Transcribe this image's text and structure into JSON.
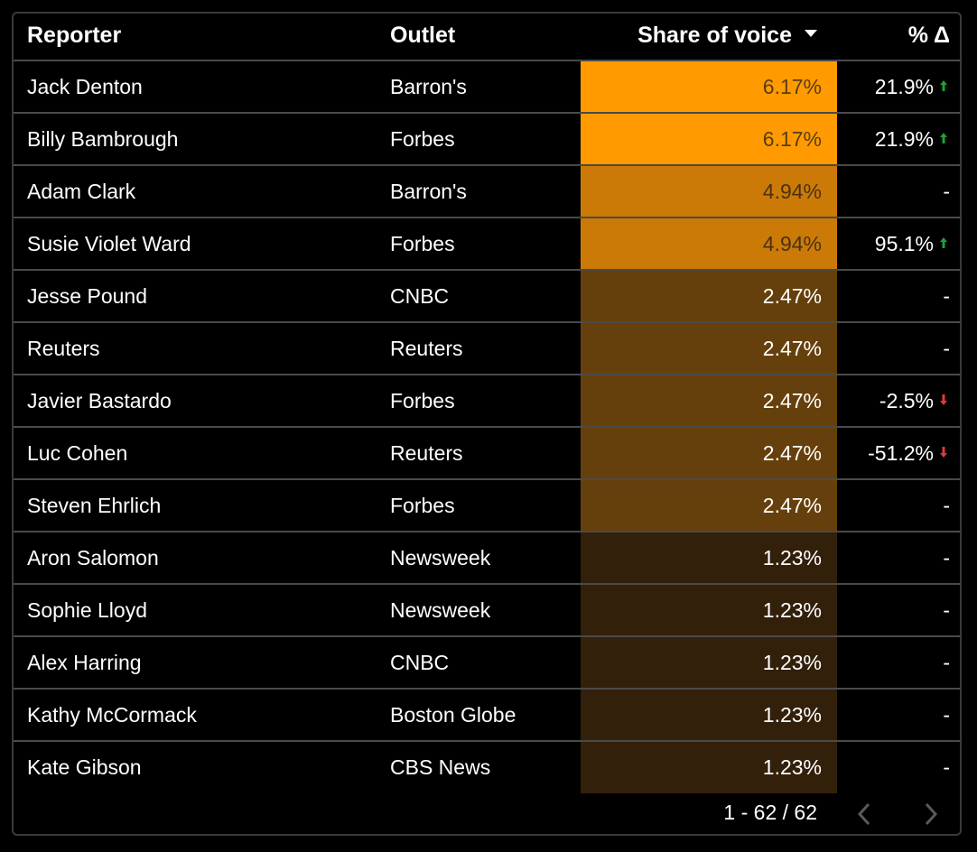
{
  "table": {
    "headers": {
      "reporter": "Reporter",
      "outlet": "Outlet",
      "share": "Share of voice",
      "delta": "% Δ"
    },
    "sort": {
      "column": "Share of voice",
      "direction": "descending"
    },
    "colors": {
      "up_arrow": "#1e9e3e",
      "down_arrow": "#e0393e",
      "heat_max": "#ff9900",
      "background": "#000000",
      "divider": "#4a4a4a"
    },
    "rows": [
      {
        "reporter": "Jack Denton",
        "outlet": "Barron's",
        "share": "6.17%",
        "share_value": 6.17,
        "delta": "21.9%",
        "trend": "up",
        "heat": "#ff9a00",
        "text": "#5a3d10"
      },
      {
        "reporter": "Billy Bambrough",
        "outlet": "Forbes",
        "share": "6.17%",
        "share_value": 6.17,
        "delta": "21.9%",
        "trend": "up",
        "heat": "#ff9a00",
        "text": "#5a3d10"
      },
      {
        "reporter": "Adam Clark",
        "outlet": "Barron's",
        "share": "4.94%",
        "share_value": 4.94,
        "delta": "-",
        "trend": "none",
        "heat": "#cc7a07",
        "text": "#4a3210"
      },
      {
        "reporter": "Susie Violet Ward",
        "outlet": "Forbes",
        "share": "4.94%",
        "share_value": 4.94,
        "delta": "95.1%",
        "trend": "up",
        "heat": "#cc7a07",
        "text": "#4a3210"
      },
      {
        "reporter": "Jesse Pound",
        "outlet": "CNBC",
        "share": "2.47%",
        "share_value": 2.47,
        "delta": "-",
        "trend": "none",
        "heat": "#66400c",
        "text": "#ffffff"
      },
      {
        "reporter": "Reuters",
        "outlet": "Reuters",
        "share": "2.47%",
        "share_value": 2.47,
        "delta": "-",
        "trend": "none",
        "heat": "#66400c",
        "text": "#ffffff"
      },
      {
        "reporter": "Javier Bastardo",
        "outlet": "Forbes",
        "share": "2.47%",
        "share_value": 2.47,
        "delta": "-2.5%",
        "trend": "down",
        "heat": "#66400c",
        "text": "#ffffff"
      },
      {
        "reporter": "Luc Cohen",
        "outlet": "Reuters",
        "share": "2.47%",
        "share_value": 2.47,
        "delta": "-51.2%",
        "trend": "down",
        "heat": "#66400c",
        "text": "#ffffff"
      },
      {
        "reporter": "Steven Ehrlich",
        "outlet": "Forbes",
        "share": "2.47%",
        "share_value": 2.47,
        "delta": "-",
        "trend": "none",
        "heat": "#66400c",
        "text": "#ffffff"
      },
      {
        "reporter": "Aron Salomon",
        "outlet": "Newsweek",
        "share": "1.23%",
        "share_value": 1.23,
        "delta": "-",
        "trend": "none",
        "heat": "#33200b",
        "text": "#ffffff"
      },
      {
        "reporter": "Sophie Lloyd",
        "outlet": "Newsweek",
        "share": "1.23%",
        "share_value": 1.23,
        "delta": "-",
        "trend": "none",
        "heat": "#33200b",
        "text": "#ffffff"
      },
      {
        "reporter": "Alex Harring",
        "outlet": "CNBC",
        "share": "1.23%",
        "share_value": 1.23,
        "delta": "-",
        "trend": "none",
        "heat": "#33200b",
        "text": "#ffffff"
      },
      {
        "reporter": "Kathy McCormack",
        "outlet": "Boston Globe",
        "share": "1.23%",
        "share_value": 1.23,
        "delta": "-",
        "trend": "none",
        "heat": "#33200b",
        "text": "#ffffff"
      },
      {
        "reporter": "Kate Gibson",
        "outlet": "CBS News",
        "share": "1.23%",
        "share_value": 1.23,
        "delta": "-",
        "trend": "none",
        "heat": "#33200b",
        "text": "#ffffff"
      }
    ]
  },
  "pagination": {
    "label": "1 - 62 / 62",
    "prev_icon": "chevron-left-icon",
    "next_icon": "chevron-right-icon"
  }
}
